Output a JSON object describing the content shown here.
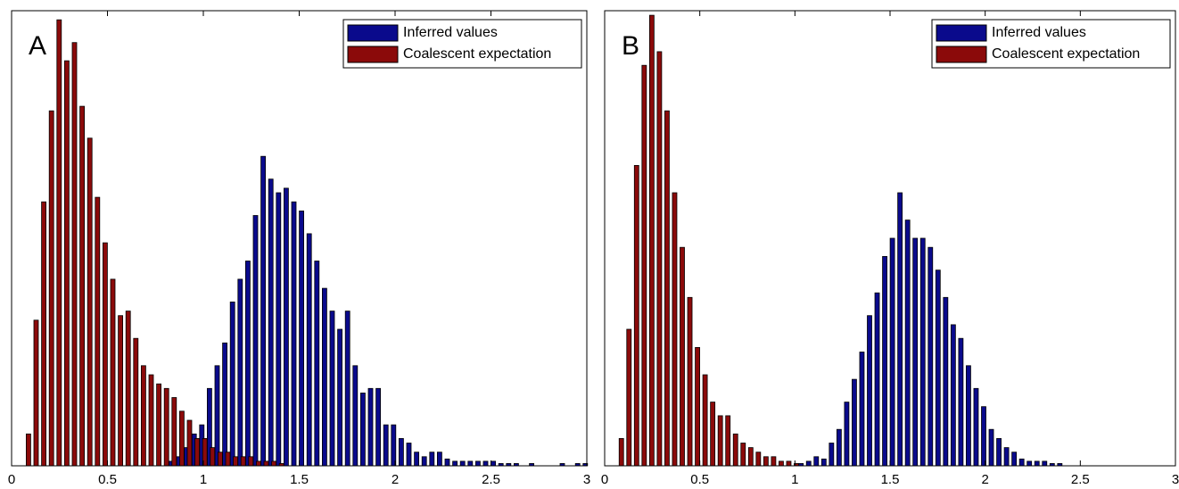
{
  "chart_data": [
    {
      "type": "bar",
      "label": "A",
      "x": [
        0.02,
        0.06,
        0.1,
        0.14,
        0.18,
        0.22,
        0.26,
        0.3,
        0.34,
        0.38,
        0.42,
        0.46,
        0.5,
        0.54,
        0.58,
        0.62,
        0.66,
        0.7,
        0.74,
        0.78,
        0.82,
        0.86,
        0.9,
        0.94,
        0.98,
        1.02,
        1.06,
        1.1,
        1.14,
        1.18,
        1.22,
        1.26,
        1.3,
        1.34,
        1.38,
        1.42,
        1.46,
        1.5,
        1.54,
        1.58,
        1.62,
        1.66,
        1.7,
        1.74,
        1.78,
        1.82,
        1.86,
        1.9,
        1.94,
        1.98,
        2.02,
        2.06,
        2.1,
        2.14,
        2.18,
        2.22,
        2.26,
        2.3,
        2.34,
        2.38,
        2.42,
        2.46,
        2.5,
        2.54,
        2.58,
        2.62,
        2.66,
        2.7,
        2.74,
        2.78,
        2.82,
        2.86,
        2.9,
        2.94,
        2.98
      ],
      "series": [
        {
          "name": "Inferred values",
          "color": "#0a0a8c",
          "values": [
            0,
            0,
            0,
            0,
            0,
            0,
            0,
            0,
            0,
            0,
            0,
            0,
            0,
            0,
            0,
            0,
            0,
            0,
            0,
            0,
            1,
            2,
            4,
            7,
            9,
            17,
            22,
            27,
            36,
            41,
            45,
            55,
            68,
            63,
            60,
            61,
            58,
            56,
            51,
            45,
            39,
            34,
            30,
            34,
            22,
            16,
            17,
            17,
            9,
            9,
            6,
            5,
            3,
            2,
            3,
            3,
            1.5,
            1,
            1,
            1,
            1,
            1,
            1,
            0.5,
            0.5,
            0.5,
            0,
            0.5,
            0,
            0,
            0,
            0.5,
            0,
            0.5,
            0.5
          ]
        },
        {
          "name": "Coalescent expectation",
          "color": "#8b0a0a",
          "values": [
            0,
            0,
            7,
            32,
            58,
            78,
            98,
            89,
            93,
            79,
            72,
            59,
            49,
            41,
            33,
            34,
            28,
            22,
            20,
            18,
            17,
            15,
            12,
            10,
            6,
            6,
            4,
            3,
            3,
            2,
            2,
            2,
            1,
            1,
            1,
            0.5,
            0,
            0,
            0,
            0,
            0,
            0,
            0,
            0,
            0,
            0,
            0,
            0,
            0,
            0,
            0,
            0,
            0,
            0,
            0,
            0,
            0,
            0,
            0,
            0,
            0,
            0,
            0,
            0,
            0,
            0,
            0,
            0,
            0,
            0,
            0,
            0,
            0,
            0,
            0
          ]
        }
      ],
      "xlim": [
        0,
        3
      ],
      "xticks": [
        0,
        0.5,
        1,
        1.5,
        2,
        2.5,
        3
      ],
      "ylim": [
        0,
        100
      ],
      "legend": "upper right"
    },
    {
      "type": "bar",
      "label": "B",
      "x": [
        0.02,
        0.06,
        0.1,
        0.14,
        0.18,
        0.22,
        0.26,
        0.3,
        0.34,
        0.38,
        0.42,
        0.46,
        0.5,
        0.54,
        0.58,
        0.62,
        0.66,
        0.7,
        0.74,
        0.78,
        0.82,
        0.86,
        0.9,
        0.94,
        0.98,
        1.02,
        1.06,
        1.1,
        1.14,
        1.18,
        1.22,
        1.26,
        1.3,
        1.34,
        1.38,
        1.42,
        1.46,
        1.5,
        1.54,
        1.58,
        1.62,
        1.66,
        1.7,
        1.74,
        1.78,
        1.82,
        1.86,
        1.9,
        1.94,
        1.98,
        2.02,
        2.06,
        2.1,
        2.14,
        2.18,
        2.22,
        2.26,
        2.3,
        2.34,
        2.38,
        2.42,
        2.46,
        2.5,
        2.54,
        2.58,
        2.62,
        2.66,
        2.7,
        2.74,
        2.78,
        2.82,
        2.86,
        2.9,
        2.94,
        2.98
      ],
      "series": [
        {
          "name": "Inferred values",
          "color": "#0a0a8c",
          "values": [
            0,
            0,
            0,
            0,
            0,
            0,
            0,
            0,
            0,
            0,
            0,
            0,
            0,
            0,
            0,
            0,
            0,
            0,
            0,
            0,
            0,
            0,
            0,
            0,
            0,
            0.5,
            1,
            2,
            1.5,
            5,
            8,
            14,
            19,
            25,
            33,
            38,
            46,
            50,
            60,
            54,
            50,
            50,
            48,
            43,
            37,
            31,
            28,
            22,
            17,
            13,
            8,
            6,
            4,
            3,
            1.5,
            1,
            1,
            1,
            0.5,
            0.5,
            0,
            0,
            0,
            0,
            0,
            0,
            0,
            0,
            0,
            0,
            0,
            0,
            0,
            0,
            0
          ]
        },
        {
          "name": "Coalescent expectation",
          "color": "#8b0a0a",
          "values": [
            0,
            0,
            6,
            30,
            66,
            88,
            99,
            91,
            78,
            60,
            48,
            37,
            26,
            20,
            14,
            11,
            11,
            7,
            5,
            4,
            3,
            2,
            2,
            1,
            1,
            0.5,
            0,
            0,
            0,
            0,
            0,
            0,
            0,
            0,
            0,
            0,
            0,
            0,
            0,
            0,
            0,
            0,
            0,
            0,
            0,
            0,
            0,
            0,
            0,
            0,
            0,
            0,
            0,
            0,
            0,
            0,
            0,
            0,
            0,
            0,
            0,
            0,
            0,
            0,
            0,
            0,
            0,
            0,
            0,
            0,
            0,
            0,
            0,
            0,
            0
          ]
        }
      ],
      "xlim": [
        0,
        3
      ],
      "xticks": [
        0,
        0.5,
        1,
        1.5,
        2,
        2.5,
        3
      ],
      "ylim": [
        0,
        100
      ],
      "legend": "upper right"
    }
  ]
}
